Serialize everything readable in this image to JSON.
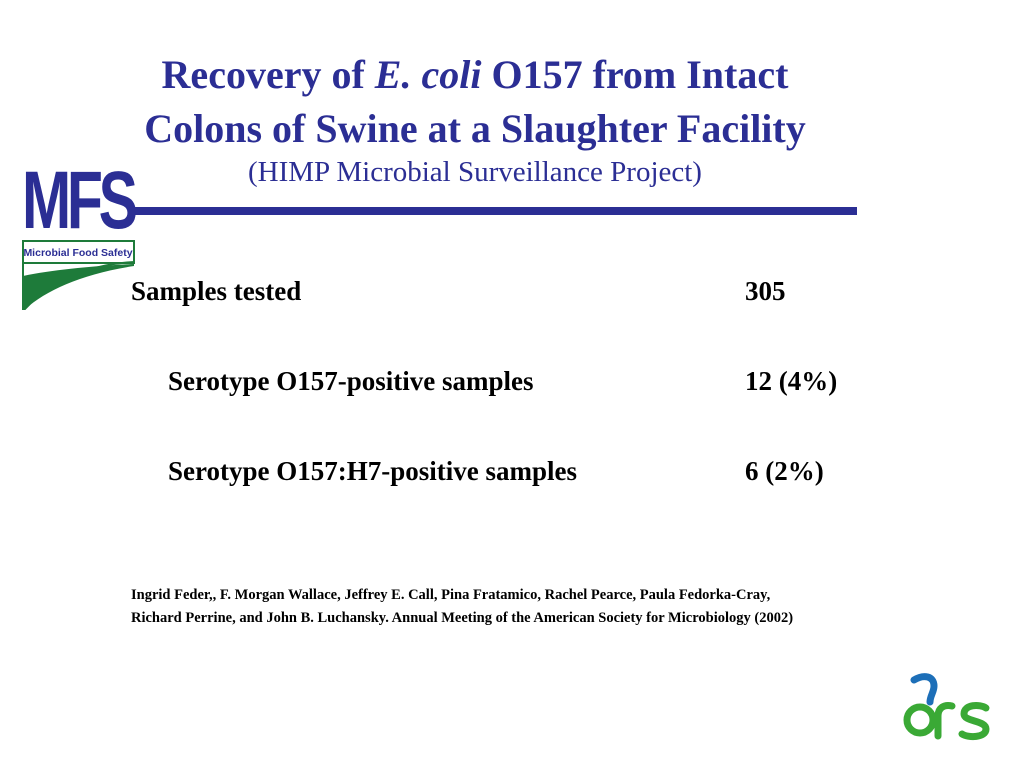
{
  "title": {
    "line1_pre": "Recovery of ",
    "line1_italic": "E. coli",
    "line1_post": " O157 from Intact",
    "line2": "Colons of Swine at a Slaughter Facility",
    "subtitle": "(HIMP Microbial Surveillance Project)"
  },
  "logo": {
    "letters": "MFS",
    "tagline": "Microbial Food Safety",
    "icon": "mfs-logo",
    "colors": {
      "navy": "#2b2e94",
      "green": "#1e7b3a"
    }
  },
  "rows": [
    {
      "label": "Samples tested",
      "value": "305"
    },
    {
      "label": "Serotype O157-positive samples",
      "value": "12 (4%)"
    },
    {
      "label": "Serotype O157:H7-positive samples",
      "value": "6 (2%)"
    }
  ],
  "citation": {
    "line1": "Ingrid Feder,, F. Morgan Wallace, Jeffrey E. Call,  Pina Fratamico, Rachel Pearce, Paula Fedorka-Cray,",
    "line2": "Richard Perrine,  and John B. Luchansky. Annual Meeting of the American Society for Microbiology  (2002)"
  },
  "ars_logo": {
    "icon": "ars-logo",
    "colors": {
      "blue": "#1d6fb8",
      "green": "#3aa935"
    }
  }
}
